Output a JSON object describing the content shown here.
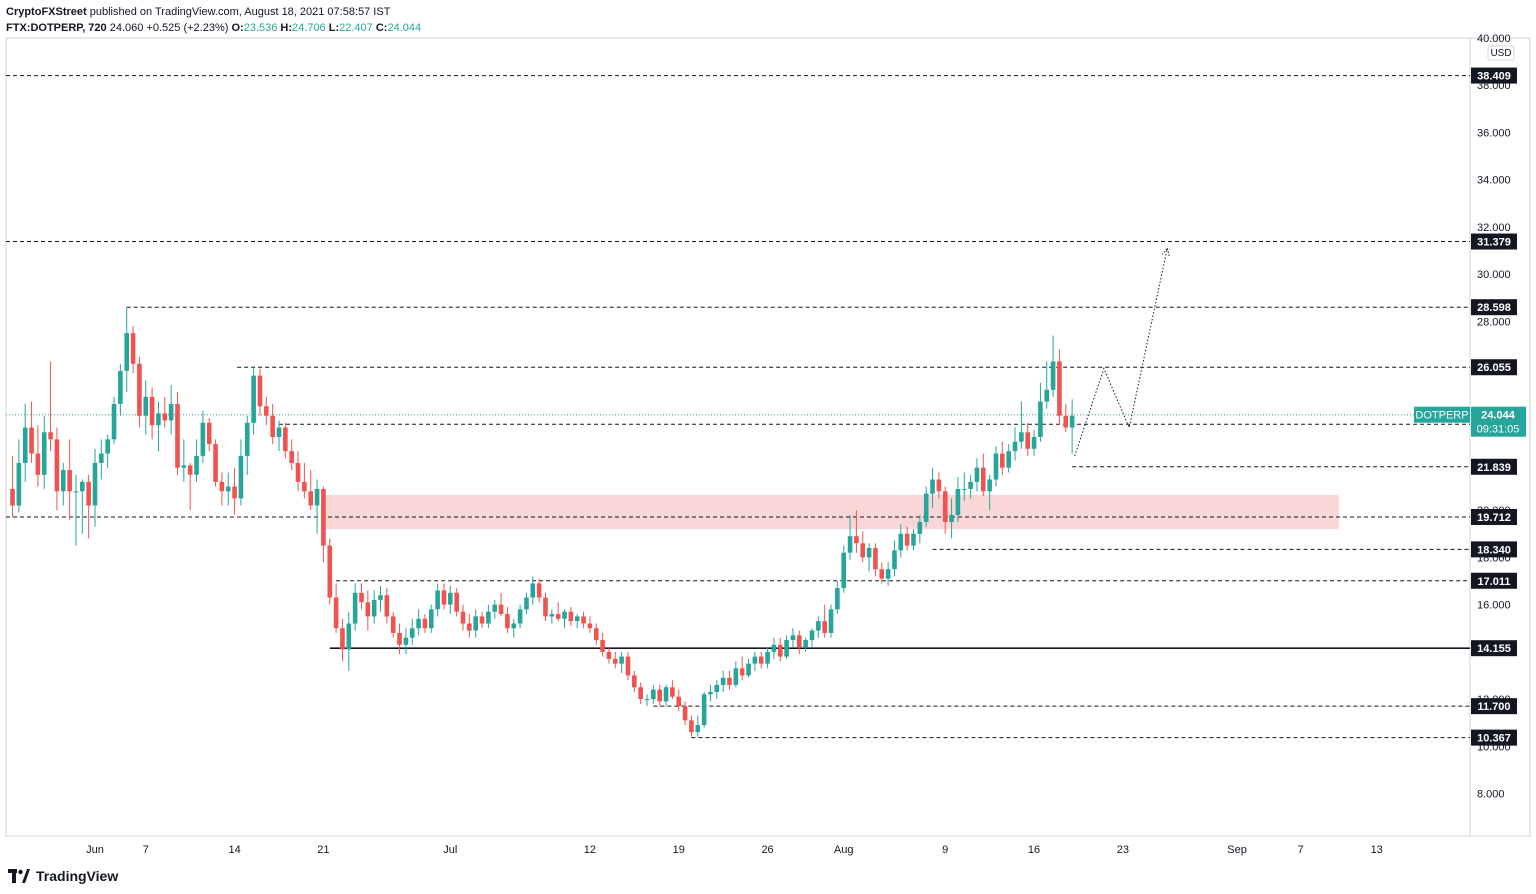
{
  "header": {
    "publisher": "CryptoFXStreet",
    "published_text": "published on TradingView.com, August 18, 2021 07:58:57 IST",
    "symbol": "FTX:DOTPERP, 720",
    "last": "24.060",
    "change": "+0.525 (+2.23%)",
    "o_label": "O:",
    "o_value": "23.536",
    "h_label": "H:",
    "h_value": "24.706",
    "l_label": "L:",
    "l_value": "22.407",
    "c_label": "C:",
    "c_value": "24.044"
  },
  "footer": {
    "brand": "TradingView"
  },
  "colors": {
    "up": "#26a69a",
    "down": "#ef5350",
    "zone": "#f8c9c9",
    "price_tag": "#26a69a",
    "level_tag": "#131722"
  },
  "chart_data": {
    "type": "candlestick",
    "currency_label": "USD",
    "ylim": [
      6.2,
      40.0
    ],
    "yticks": [
      "8.000",
      "10.000",
      "12.000",
      "14.000",
      "16.000",
      "18.000",
      "20.000",
      "22.000",
      "24.000",
      "26.000",
      "28.000",
      "30.000",
      "32.000",
      "34.000",
      "36.000",
      "38.000",
      "40.000"
    ],
    "xticks": [
      {
        "label": "Jun",
        "day": 3
      },
      {
        "label": "7",
        "day": 7
      },
      {
        "label": "14",
        "day": 14
      },
      {
        "label": "21",
        "day": 21
      },
      {
        "label": "Jul",
        "day": 31
      },
      {
        "label": "12",
        "day": 42
      },
      {
        "label": "19",
        "day": 49
      },
      {
        "label": "26",
        "day": 56
      },
      {
        "label": "Aug",
        "day": 62
      },
      {
        "label": "9",
        "day": 70
      },
      {
        "label": "16",
        "day": 77
      },
      {
        "label": "23",
        "day": 84
      },
      {
        "label": "Sep",
        "day": 93
      },
      {
        "label": "7",
        "day": 98
      },
      {
        "label": "13",
        "day": 104
      }
    ],
    "levels": [
      {
        "value": 38.409,
        "label": "38.409",
        "style": "dashed"
      },
      {
        "value": 31.379,
        "label": "31.379",
        "style": "dashed"
      },
      {
        "value": 28.598,
        "label": "28.598",
        "style": "dashed",
        "from_day": 5.5
      },
      {
        "value": 26.055,
        "label": "26.055",
        "style": "dashed",
        "from_day": 14.2
      },
      {
        "value": 23.638,
        "label": "23.638",
        "style": "dashed",
        "from_day": 17.5
      },
      {
        "value": 21.839,
        "label": "21.839",
        "style": "dashed",
        "from_day": 80
      },
      {
        "value": 19.712,
        "label": "19.712",
        "style": "dashed"
      },
      {
        "value": 18.34,
        "label": "18.340",
        "style": "dashed",
        "from_day": 69
      },
      {
        "value": 17.011,
        "label": "17.011",
        "style": "dashed",
        "from_day": 22
      },
      {
        "value": 14.155,
        "label": "14.155",
        "style": "solid",
        "from_day": 21.5
      },
      {
        "value": 11.7,
        "label": "11.700",
        "style": "dashed",
        "from_day": 47
      },
      {
        "value": 10.367,
        "label": "10.367",
        "style": "dashed",
        "from_day": 50
      }
    ],
    "current_price": {
      "symbol": "DOTPERP",
      "value": 24.044,
      "label": "24.044",
      "countdown": "09:31:05"
    },
    "zone": {
      "low": 19.2,
      "high": 20.65,
      "from_day": 21,
      "to_day": 101
    },
    "projection": [
      [
        80.2,
        22.3
      ],
      [
        82.5,
        26.0
      ],
      [
        84.5,
        23.5
      ],
      [
        87.5,
        31.1
      ]
    ],
    "candles": [
      [
        -3.5,
        20.9,
        22.3,
        19.7,
        20.2
      ],
      [
        -3,
        20.2,
        23.0,
        19.9,
        22.0
      ],
      [
        -2.5,
        22.0,
        24.5,
        21.2,
        23.5
      ],
      [
        -2,
        23.5,
        24.6,
        22.0,
        22.4
      ],
      [
        -1.5,
        22.4,
        23.6,
        21.0,
        21.5
      ],
      [
        -1,
        21.5,
        24.0,
        20.9,
        23.3
      ],
      [
        -0.5,
        23.3,
        26.3,
        22.5,
        23.0
      ],
      [
        0,
        23.0,
        23.5,
        20.0,
        20.8
      ],
      [
        0.5,
        20.8,
        22.0,
        20.2,
        21.7
      ],
      [
        1,
        21.7,
        23.0,
        19.6,
        20.8
      ],
      [
        1.5,
        20.8,
        21.5,
        18.5,
        20.8
      ],
      [
        2,
        20.8,
        21.3,
        19.0,
        21.2
      ],
      [
        2.5,
        21.2,
        21.5,
        18.8,
        20.2
      ],
      [
        3,
        20.2,
        22.6,
        19.3,
        22.0
      ],
      [
        3.5,
        22.0,
        23.0,
        21.3,
        22.4
      ],
      [
        4,
        22.4,
        23.2,
        21.8,
        23.0
      ],
      [
        4.5,
        23.0,
        24.8,
        22.8,
        24.5
      ],
      [
        5,
        24.5,
        26.2,
        24.0,
        25.9
      ],
      [
        5.5,
        25.9,
        28.6,
        25.0,
        27.5
      ],
      [
        6,
        27.5,
        27.8,
        25.8,
        26.2
      ],
      [
        6.5,
        26.2,
        26.5,
        23.5,
        24.0
      ],
      [
        7,
        24.0,
        25.5,
        23.2,
        24.8
      ],
      [
        7.5,
        24.8,
        25.2,
        23.0,
        23.6
      ],
      [
        8,
        23.6,
        24.6,
        22.5,
        24.1
      ],
      [
        8.5,
        24.1,
        24.8,
        23.5,
        23.8
      ],
      [
        9,
        23.8,
        25.3,
        23.2,
        24.5
      ],
      [
        9.5,
        24.5,
        25.0,
        21.5,
        21.8
      ],
      [
        10,
        21.8,
        23.0,
        21.2,
        21.9
      ],
      [
        10.5,
        21.9,
        22.0,
        20.0,
        21.5
      ],
      [
        11,
        21.5,
        23.0,
        21.2,
        22.3
      ],
      [
        11.5,
        22.3,
        24.2,
        22.0,
        23.7
      ],
      [
        12,
        23.7,
        23.9,
        22.5,
        22.8
      ],
      [
        12.5,
        22.8,
        23.0,
        21.0,
        21.2
      ],
      [
        13,
        21.2,
        21.6,
        20.2,
        20.8
      ],
      [
        13.5,
        20.8,
        21.6,
        20.2,
        21.0
      ],
      [
        14,
        21.0,
        21.8,
        19.8,
        20.5
      ],
      [
        14.5,
        20.5,
        23.0,
        20.2,
        22.3
      ],
      [
        15,
        22.3,
        24.0,
        21.5,
        23.7
      ],
      [
        15.5,
        23.7,
        26.1,
        23.2,
        25.7
      ],
      [
        16,
        25.7,
        26.0,
        24.0,
        24.4
      ],
      [
        16.5,
        24.4,
        24.8,
        23.6,
        24.0
      ],
      [
        17,
        24.0,
        24.5,
        22.8,
        23.1
      ],
      [
        17.5,
        23.1,
        23.8,
        22.5,
        23.5
      ],
      [
        18,
        23.5,
        23.7,
        22.2,
        22.5
      ],
      [
        18.5,
        22.5,
        23.0,
        21.7,
        22.0
      ],
      [
        19,
        22.0,
        22.5,
        20.8,
        21.2
      ],
      [
        19.5,
        21.2,
        22.0,
        20.5,
        20.8
      ],
      [
        20,
        20.8,
        21.7,
        20.0,
        20.2
      ],
      [
        20.5,
        20.2,
        21.3,
        19.0,
        20.9
      ],
      [
        21,
        20.9,
        21.0,
        17.8,
        18.5
      ],
      [
        21.5,
        18.5,
        18.8,
        16.0,
        16.3
      ],
      [
        22,
        16.3,
        16.9,
        14.8,
        15.0
      ],
      [
        22.5,
        15.0,
        15.4,
        13.6,
        14.1
      ],
      [
        23,
        14.1,
        15.7,
        13.2,
        15.2
      ],
      [
        23.5,
        15.2,
        16.9,
        14.9,
        16.5
      ],
      [
        24,
        16.5,
        16.9,
        15.8,
        16.1
      ],
      [
        24.5,
        16.1,
        16.6,
        14.9,
        15.5
      ],
      [
        25,
        15.5,
        16.6,
        15.2,
        16.2
      ],
      [
        25.5,
        16.2,
        16.8,
        15.7,
        16.4
      ],
      [
        26,
        16.4,
        16.7,
        15.2,
        15.5
      ],
      [
        26.5,
        15.5,
        15.7,
        14.6,
        14.8
      ],
      [
        27,
        14.8,
        15.2,
        13.9,
        14.3
      ],
      [
        27.5,
        14.3,
        15.0,
        13.9,
        14.6
      ],
      [
        28,
        14.6,
        15.4,
        14.3,
        15.0
      ],
      [
        28.5,
        15.0,
        15.8,
        14.7,
        15.4
      ],
      [
        29,
        15.4,
        15.6,
        14.8,
        15.0
      ],
      [
        29.5,
        15.0,
        16.0,
        14.8,
        15.8
      ],
      [
        30,
        15.8,
        16.9,
        15.5,
        16.6
      ],
      [
        30.5,
        16.6,
        16.9,
        15.8,
        16.0
      ],
      [
        31,
        16.0,
        16.8,
        15.6,
        16.5
      ],
      [
        31.5,
        16.5,
        16.7,
        15.5,
        15.7
      ],
      [
        32,
        15.7,
        16.0,
        14.9,
        15.2
      ],
      [
        32.5,
        15.2,
        15.6,
        14.6,
        14.9
      ],
      [
        33,
        14.9,
        15.8,
        14.6,
        15.5
      ],
      [
        33.5,
        15.5,
        15.7,
        15.0,
        15.2
      ],
      [
        34,
        15.2,
        16.0,
        15.0,
        15.7
      ],
      [
        34.5,
        15.7,
        16.2,
        15.4,
        16.0
      ],
      [
        35,
        16.0,
        16.5,
        15.5,
        15.6
      ],
      [
        35.5,
        15.6,
        15.9,
        14.8,
        15.0
      ],
      [
        36,
        15.0,
        15.4,
        14.6,
        15.2
      ],
      [
        36.5,
        15.2,
        16.0,
        15.0,
        15.8
      ],
      [
        37,
        15.8,
        16.5,
        15.6,
        16.3
      ],
      [
        37.5,
        16.3,
        17.2,
        16.0,
        16.9
      ],
      [
        38,
        16.9,
        17.1,
        16.1,
        16.3
      ],
      [
        38.5,
        16.3,
        16.5,
        15.3,
        15.5
      ],
      [
        39,
        15.5,
        15.8,
        15.2,
        15.6
      ],
      [
        39.5,
        15.6,
        16.1,
        15.3,
        15.4
      ],
      [
        40,
        15.4,
        15.8,
        15.0,
        15.7
      ],
      [
        40.5,
        15.7,
        15.9,
        15.1,
        15.3
      ],
      [
        41,
        15.3,
        15.6,
        15.0,
        15.5
      ],
      [
        41.5,
        15.5,
        15.7,
        15.0,
        15.2
      ],
      [
        42,
        15.2,
        15.5,
        14.8,
        15.0
      ],
      [
        42.5,
        15.0,
        15.2,
        14.3,
        14.5
      ],
      [
        43,
        14.5,
        14.8,
        13.8,
        14.0
      ],
      [
        43.5,
        14.0,
        14.2,
        13.5,
        13.7
      ],
      [
        44,
        13.7,
        14.0,
        13.3,
        13.5
      ],
      [
        44.5,
        13.5,
        14.0,
        13.1,
        13.8
      ],
      [
        45,
        13.8,
        14.0,
        12.8,
        13.0
      ],
      [
        45.5,
        13.0,
        13.2,
        12.3,
        12.5
      ],
      [
        46,
        12.5,
        12.7,
        11.8,
        12.0
      ],
      [
        46.5,
        12.0,
        12.2,
        11.7,
        12.0
      ],
      [
        47,
        12.0,
        12.6,
        11.8,
        12.4
      ],
      [
        47.5,
        12.4,
        12.6,
        11.7,
        11.9
      ],
      [
        48,
        11.9,
        12.6,
        11.7,
        12.5
      ],
      [
        48.5,
        12.5,
        12.8,
        12.0,
        12.1
      ],
      [
        49,
        12.1,
        12.4,
        11.5,
        11.7
      ],
      [
        49.5,
        11.7,
        11.9,
        10.9,
        11.1
      ],
      [
        50,
        11.1,
        11.3,
        10.4,
        10.6
      ],
      [
        50.5,
        10.6,
        11.3,
        10.4,
        10.9
      ],
      [
        51,
        10.9,
        12.3,
        10.8,
        12.2
      ],
      [
        51.5,
        12.2,
        12.6,
        11.9,
        12.3
      ],
      [
        52,
        12.3,
        12.8,
        12.0,
        12.6
      ],
      [
        52.5,
        12.6,
        13.2,
        12.3,
        12.9
      ],
      [
        53,
        12.9,
        13.2,
        12.4,
        12.6
      ],
      [
        53.5,
        12.6,
        13.6,
        12.5,
        13.3
      ],
      [
        54,
        13.3,
        13.8,
        12.8,
        13.0
      ],
      [
        54.5,
        13.0,
        13.7,
        12.9,
        13.5
      ],
      [
        55,
        13.5,
        14.0,
        13.2,
        13.8
      ],
      [
        55.5,
        13.8,
        14.0,
        13.3,
        13.5
      ],
      [
        56,
        13.5,
        14.2,
        13.3,
        14.0
      ],
      [
        56.5,
        14.0,
        14.6,
        13.7,
        14.3
      ],
      [
        57,
        14.3,
        14.6,
        13.6,
        13.8
      ],
      [
        57.5,
        13.8,
        14.7,
        13.7,
        14.5
      ],
      [
        58,
        14.5,
        15.0,
        14.2,
        14.7
      ],
      [
        58.5,
        14.7,
        14.9,
        13.9,
        14.2
      ],
      [
        59,
        14.2,
        14.6,
        14.0,
        14.5
      ],
      [
        59.5,
        14.5,
        15.0,
        14.2,
        14.9
      ],
      [
        60,
        14.9,
        15.5,
        14.6,
        15.3
      ],
      [
        60.5,
        15.3,
        16.0,
        14.6,
        14.8
      ],
      [
        61,
        14.8,
        16.0,
        14.6,
        15.8
      ],
      [
        61.5,
        15.8,
        17.0,
        15.6,
        16.7
      ],
      [
        62,
        16.7,
        18.5,
        16.5,
        18.2
      ],
      [
        62.5,
        18.2,
        19.8,
        17.9,
        18.9
      ],
      [
        63,
        18.9,
        20.0,
        18.2,
        18.6
      ],
      [
        63.5,
        18.6,
        19.1,
        17.8,
        18.0
      ],
      [
        64,
        18.0,
        18.6,
        17.4,
        18.4
      ],
      [
        64.5,
        18.4,
        18.6,
        17.2,
        17.5
      ],
      [
        65,
        17.5,
        17.8,
        16.9,
        17.1
      ],
      [
        65.5,
        17.1,
        17.8,
        16.8,
        17.5
      ],
      [
        66,
        17.5,
        18.7,
        17.2,
        18.3
      ],
      [
        66.5,
        18.3,
        19.4,
        18.0,
        19.0
      ],
      [
        67,
        19.0,
        19.3,
        18.3,
        18.5
      ],
      [
        67.5,
        18.5,
        19.2,
        18.3,
        19.0
      ],
      [
        68,
        19.0,
        19.8,
        18.6,
        19.5
      ],
      [
        68.5,
        19.5,
        21.0,
        19.3,
        20.7
      ],
      [
        69,
        20.7,
        21.8,
        20.1,
        21.3
      ],
      [
        69.5,
        21.3,
        21.6,
        20.5,
        20.8
      ],
      [
        70,
        20.8,
        21.0,
        19.0,
        19.5
      ],
      [
        70.5,
        19.5,
        20.5,
        18.8,
        19.8
      ],
      [
        71,
        19.8,
        21.4,
        19.5,
        20.9
      ],
      [
        71.5,
        20.9,
        21.6,
        20.4,
        20.9
      ],
      [
        72,
        20.9,
        21.5,
        20.5,
        21.2
      ],
      [
        72.5,
        21.2,
        22.2,
        20.8,
        21.8
      ],
      [
        73,
        21.8,
        22.4,
        20.6,
        20.8
      ],
      [
        73.5,
        20.8,
        21.5,
        20.0,
        21.3
      ],
      [
        74,
        21.3,
        22.7,
        21.0,
        22.4
      ],
      [
        74.5,
        22.4,
        22.9,
        21.5,
        21.8
      ],
      [
        75,
        21.8,
        22.8,
        21.6,
        22.5
      ],
      [
        75.5,
        22.5,
        23.5,
        22.1,
        22.9
      ],
      [
        76,
        22.9,
        24.6,
        22.6,
        23.3
      ],
      [
        76.5,
        23.3,
        23.7,
        22.3,
        22.6
      ],
      [
        77,
        22.6,
        23.4,
        22.3,
        23.1
      ],
      [
        77.5,
        23.1,
        25.4,
        22.9,
        24.6
      ],
      [
        78,
        24.6,
        26.3,
        24.3,
        25.1
      ],
      [
        78.5,
        25.1,
        27.4,
        24.8,
        26.3
      ],
      [
        79,
        26.3,
        26.8,
        23.6,
        24.0
      ],
      [
        79.5,
        24.0,
        24.5,
        23.3,
        23.5
      ],
      [
        80,
        23.5,
        24.7,
        22.4,
        24.0
      ]
    ]
  }
}
